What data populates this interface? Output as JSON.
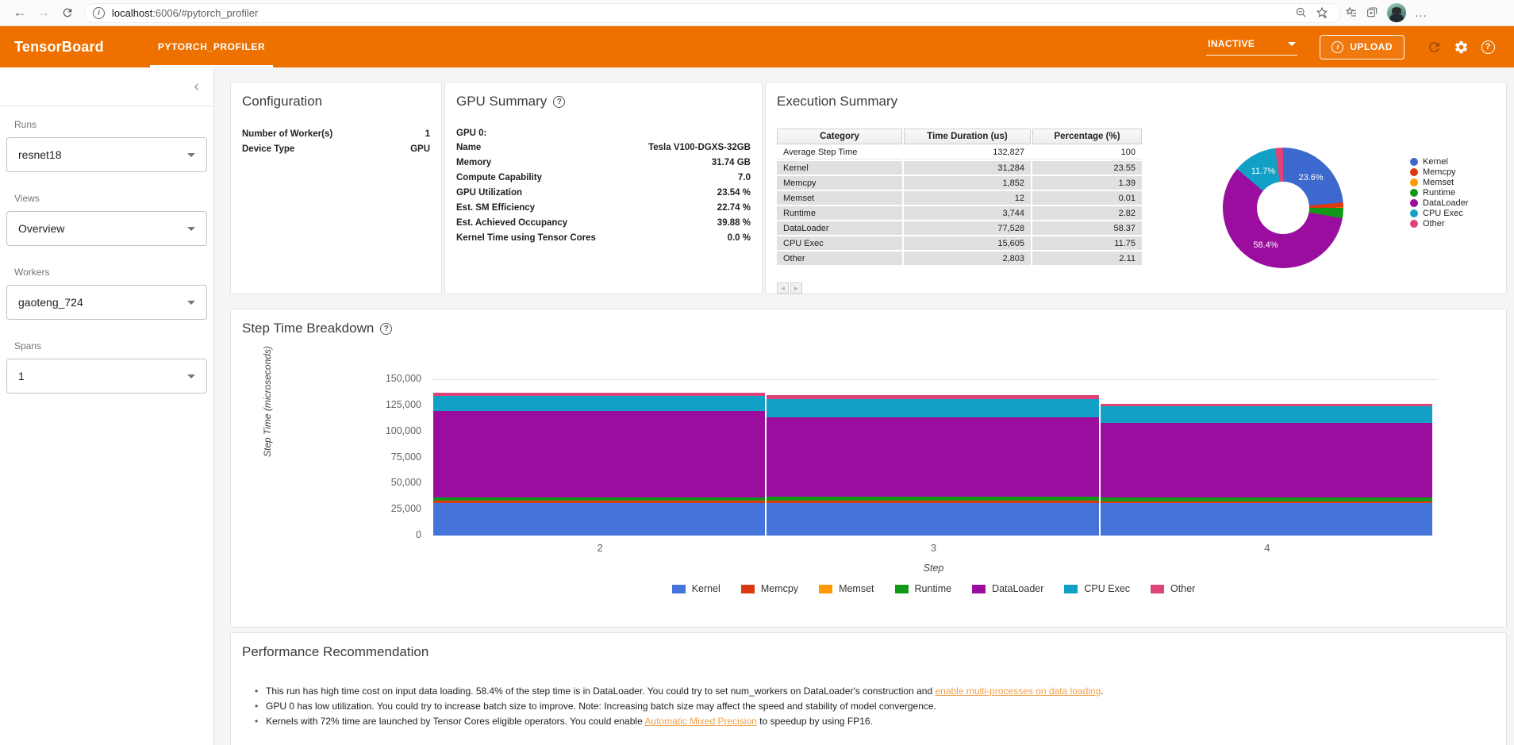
{
  "browser": {
    "back_icon": "back-arrow",
    "forward_icon": "forward-arrow",
    "reload_icon": "reload",
    "page_info_icon": "page-info",
    "url_host": "localhost",
    "url_rest": ":6006/#pytorch_profiler",
    "right_icons": [
      "zoom-out",
      "add-favorite",
      "favorites",
      "collections",
      "profile-avatar",
      "more-menu"
    ],
    "ellipsis": "..."
  },
  "header": {
    "logo": "TensorBoard",
    "tab": "PYTORCH_PROFILER",
    "status": "INACTIVE",
    "upload_label": "UPLOAD",
    "brand_color": "#ee7100"
  },
  "sidebar": {
    "collapse_icon": "chevron-left",
    "groups": [
      {
        "label": "Runs",
        "value": "resnet18"
      },
      {
        "label": "Views",
        "value": "Overview"
      },
      {
        "label": "Workers",
        "value": "gaoteng_724"
      },
      {
        "label": "Spans",
        "value": "1"
      }
    ]
  },
  "configuration": {
    "title": "Configuration",
    "rows": [
      {
        "label": "Number of Worker(s)",
        "value": "1"
      },
      {
        "label": "Device Type",
        "value": "GPU"
      }
    ]
  },
  "gpu_summary": {
    "title": "GPU Summary",
    "device_heading": "GPU 0:",
    "rows": [
      {
        "label": "Name",
        "value": "Tesla V100-DGXS-32GB"
      },
      {
        "label": "Memory",
        "value": "31.74 GB"
      },
      {
        "label": "Compute Capability",
        "value": "7.0"
      },
      {
        "label": "GPU Utilization",
        "value": "23.54 %"
      },
      {
        "label": "Est. SM Efficiency",
        "value": "22.74 %"
      },
      {
        "label": "Est. Achieved Occupancy",
        "value": "39.88 %"
      },
      {
        "label": "Kernel Time using Tensor Cores",
        "value": "0.0 %"
      }
    ]
  },
  "execution_summary": {
    "title": "Execution Summary",
    "table": {
      "headers": [
        "Category",
        "Time Duration (us)",
        "Percentage (%)"
      ],
      "rows": [
        [
          "Average Step Time",
          "132,827",
          "100"
        ],
        [
          "Kernel",
          "31,284",
          "23.55"
        ],
        [
          "Memcpy",
          "1,852",
          "1.39"
        ],
        [
          "Memset",
          "12",
          "0.01"
        ],
        [
          "Runtime",
          "3,744",
          "2.82"
        ],
        [
          "DataLoader",
          "77,528",
          "58.37"
        ],
        [
          "CPU Exec",
          "15,605",
          "11.75"
        ],
        [
          "Other",
          "2,803",
          "2.11"
        ]
      ]
    },
    "pager": [
      "◄",
      "►"
    ]
  },
  "step_breakdown": {
    "title": "Step Time Breakdown"
  },
  "chart_data": [
    {
      "type": "pie",
      "donut": true,
      "labels": [
        "Kernel",
        "Memcpy",
        "Memset",
        "Runtime",
        "DataLoader",
        "CPU Exec",
        "Other"
      ],
      "values": [
        23.55,
        1.39,
        0.01,
        2.82,
        58.37,
        11.75,
        2.11
      ],
      "colors": [
        "#3d68ce",
        "#dc3912",
        "#ff9900",
        "#129818",
        "#9a0d9e",
        "#12a0c6",
        "#dd4477"
      ],
      "visible_labels": [
        "23.6%",
        "",
        "",
        "",
        "58.4%",
        "11.7%",
        ""
      ],
      "legend_position": "right"
    },
    {
      "type": "bar",
      "stacked": true,
      "title": "Step Time Breakdown",
      "categories": [
        "2",
        "3",
        "4"
      ],
      "series": [
        {
          "name": "Kernel",
          "color": "#4474d9",
          "values": [
            31300,
            31300,
            31250
          ]
        },
        {
          "name": "Memcpy",
          "color": "#dc3912",
          "values": [
            1900,
            1850,
            1800
          ]
        },
        {
          "name": "Memset",
          "color": "#ff9900",
          "values": [
            12,
            12,
            12
          ]
        },
        {
          "name": "Runtime",
          "color": "#129818",
          "values": [
            3600,
            3950,
            3650
          ]
        },
        {
          "name": "DataLoader",
          "color": "#9a0d9e",
          "values": [
            82900,
            76400,
            71800
          ]
        },
        {
          "name": "CPU Exec",
          "color": "#12a0c6",
          "values": [
            14000,
            17500,
            15500
          ]
        },
        {
          "name": "Other",
          "color": "#dd4477",
          "values": [
            3600,
            3500,
            2400
          ]
        }
      ],
      "xlabel": "Step",
      "ylabel": "Step Time (microseconds)",
      "ylim": [
        0,
        150000
      ],
      "yticks": [
        "0",
        "25,000",
        "50,000",
        "75,000",
        "100,000",
        "125,000",
        "150,000"
      ],
      "legend_position": "bottom",
      "grid": "top-line-only"
    }
  ],
  "performance": {
    "title": "Performance Recommendation",
    "bullets": [
      [
        {
          "text": "This run has high time cost on input data loading. 58.4% of the step time is in DataLoader. You could try to set num_workers on DataLoader's construction and "
        },
        {
          "text": "enable multi-processes on data loading",
          "link": true
        },
        {
          "text": "."
        }
      ],
      [
        {
          "text": "GPU 0 has low utilization. You could try to increase batch size to improve. Note: Increasing batch size may affect the speed and stability of model convergence."
        }
      ],
      [
        {
          "text": "Kernels with 72% time are launched by Tensor Cores eligible operators. You could enable "
        },
        {
          "text": "Automatic Mixed Precision",
          "link": true
        },
        {
          "text": " to speedup by using FP16."
        }
      ]
    ]
  }
}
